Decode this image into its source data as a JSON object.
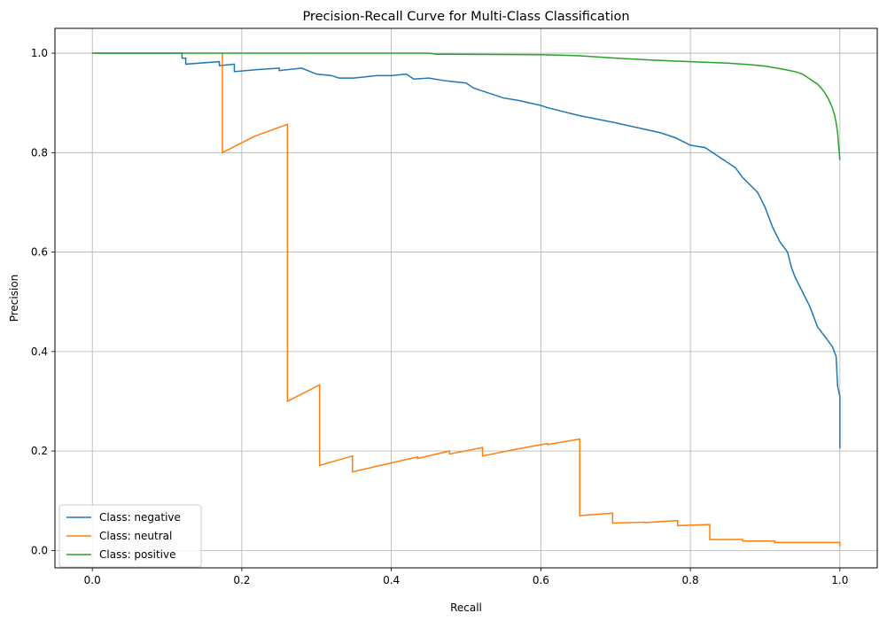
{
  "chart_data": {
    "type": "line",
    "title": "Precision-Recall Curve for Multi-Class Classification",
    "xlabel": "Recall",
    "ylabel": "Precision",
    "xlim": [
      -0.05,
      1.05
    ],
    "ylim": [
      -0.035,
      1.05
    ],
    "xticks": [
      "0.0",
      "0.2",
      "0.4",
      "0.6",
      "0.8",
      "1.0"
    ],
    "yticks": [
      "0.0",
      "0.2",
      "0.4",
      "0.6",
      "0.8",
      "1.0"
    ],
    "grid": true,
    "legend_position": "lower-left",
    "series": [
      {
        "name": "Class: negative",
        "color": "#1f77b4",
        "x": [
          0.0,
          0.12,
          0.12,
          0.125,
          0.125,
          0.17,
          0.17,
          0.19,
          0.19,
          0.22,
          0.25,
          0.25,
          0.28,
          0.3,
          0.32,
          0.33,
          0.35,
          0.38,
          0.4,
          0.42,
          0.43,
          0.45,
          0.47,
          0.5,
          0.51,
          0.52,
          0.55,
          0.57,
          0.6,
          0.61,
          0.65,
          0.7,
          0.73,
          0.76,
          0.78,
          0.8,
          0.82,
          0.84,
          0.86,
          0.87,
          0.89,
          0.9,
          0.91,
          0.92,
          0.93,
          0.935,
          0.94,
          0.95,
          0.96,
          0.965,
          0.97,
          0.98,
          0.99,
          0.995,
          0.997,
          1.0,
          1.0
        ],
        "y": [
          1.0,
          1.0,
          0.99,
          0.99,
          0.978,
          0.983,
          0.975,
          0.978,
          0.963,
          0.967,
          0.97,
          0.965,
          0.97,
          0.958,
          0.955,
          0.95,
          0.95,
          0.955,
          0.955,
          0.958,
          0.948,
          0.95,
          0.945,
          0.94,
          0.93,
          0.925,
          0.91,
          0.905,
          0.895,
          0.89,
          0.875,
          0.86,
          0.85,
          0.84,
          0.83,
          0.815,
          0.81,
          0.79,
          0.77,
          0.75,
          0.72,
          0.69,
          0.65,
          0.62,
          0.6,
          0.57,
          0.55,
          0.52,
          0.49,
          0.47,
          0.45,
          0.43,
          0.41,
          0.39,
          0.33,
          0.31,
          0.205
        ]
      },
      {
        "name": "Class: neutral",
        "color": "#ff7f0e",
        "x": [
          0.174,
          0.174,
          0.217,
          0.261,
          0.261,
          0.304,
          0.304,
          0.348,
          0.348,
          0.391,
          0.435,
          0.435,
          0.478,
          0.478,
          0.522,
          0.522,
          0.565,
          0.609,
          0.609,
          0.652,
          0.652,
          0.696,
          0.696,
          0.739,
          0.739,
          0.783,
          0.783,
          0.826,
          0.826,
          0.87,
          0.87,
          0.913,
          0.913,
          0.957,
          1.0,
          1.0
        ],
        "y": [
          1.0,
          0.8,
          0.833,
          0.857,
          0.3,
          0.333,
          0.171,
          0.19,
          0.158,
          0.173,
          0.188,
          0.185,
          0.2,
          0.194,
          0.207,
          0.19,
          0.203,
          0.215,
          0.213,
          0.224,
          0.07,
          0.075,
          0.055,
          0.057,
          0.056,
          0.06,
          0.05,
          0.052,
          0.022,
          0.022,
          0.019,
          0.019,
          0.016,
          0.016,
          0.016,
          0.008
        ]
      },
      {
        "name": "Class: positive",
        "color": "#2ca02c",
        "x": [
          0.0,
          0.45,
          0.46,
          0.6,
          0.65,
          0.7,
          0.75,
          0.8,
          0.85,
          0.88,
          0.9,
          0.92,
          0.94,
          0.95,
          0.96,
          0.97,
          0.975,
          0.98,
          0.985,
          0.99,
          0.993,
          0.995,
          0.997,
          0.998,
          1.0
        ],
        "y": [
          1.0,
          1.0,
          0.998,
          0.997,
          0.995,
          0.99,
          0.986,
          0.983,
          0.98,
          0.977,
          0.974,
          0.969,
          0.963,
          0.958,
          0.948,
          0.938,
          0.93,
          0.92,
          0.907,
          0.89,
          0.875,
          0.86,
          0.84,
          0.82,
          0.785
        ]
      }
    ]
  }
}
